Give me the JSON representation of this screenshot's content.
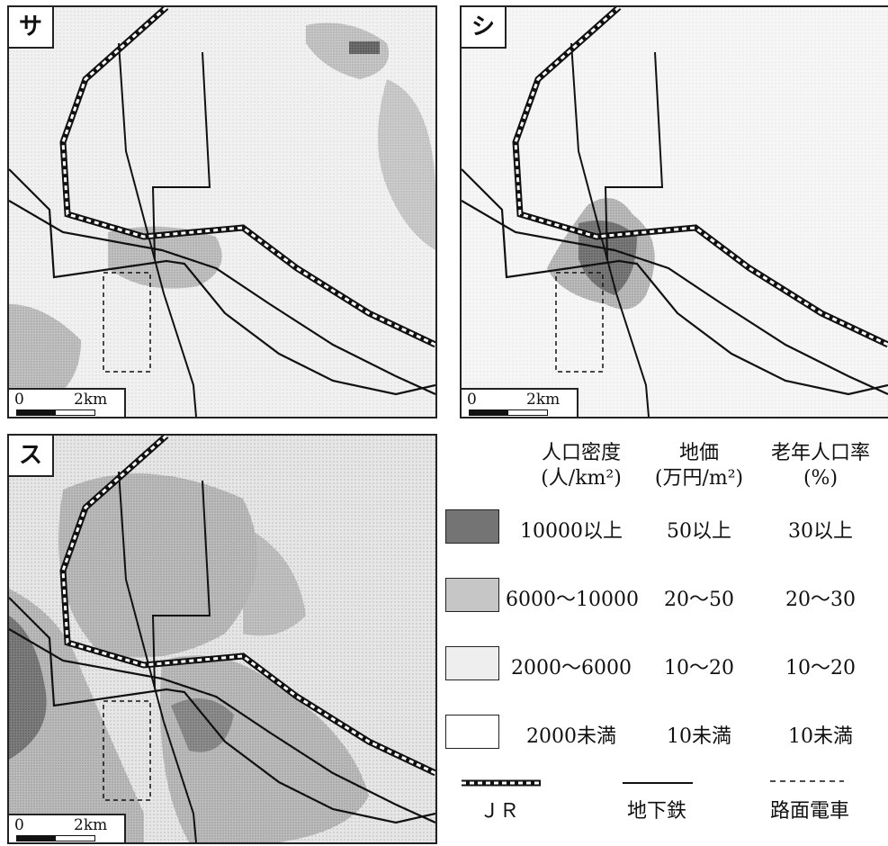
{
  "panels": [
    {
      "label": "サ",
      "scale": {
        "start": "0",
        "end": "2km"
      }
    },
    {
      "label": "シ",
      "scale": {
        "start": "0",
        "end": "2km"
      }
    },
    {
      "label": "ス",
      "scale": {
        "start": "0",
        "end": "2km"
      }
    }
  ],
  "legend": {
    "headers": [
      {
        "title": "人口密度",
        "unit": "(人/km²)"
      },
      {
        "title": "地価",
        "unit": "(万円/m²)"
      },
      {
        "title": "老年人口率",
        "unit": "(%)"
      }
    ],
    "classes": [
      {
        "fill": "#6a6a6a",
        "population": "10000以上",
        "land_price": "50以上",
        "elderly": "30以上"
      },
      {
        "fill": "#c4c4c4",
        "population": "6000〜10000",
        "land_price": "20〜50",
        "elderly": "20〜30"
      },
      {
        "fill": "#ececec",
        "population": "2000〜6000",
        "land_price": "10〜20",
        "elderly": "10〜20"
      },
      {
        "fill": "#ffffff",
        "population": "2000未満",
        "land_price": "10未満",
        "elderly": "10未満"
      }
    ],
    "lines": [
      {
        "icon": "jr-line-icon",
        "label": "ＪＲ"
      },
      {
        "icon": "subway-line-icon",
        "label": "地下鉄"
      },
      {
        "icon": "tram-line-icon",
        "label": "路面電車"
      }
    ]
  }
}
